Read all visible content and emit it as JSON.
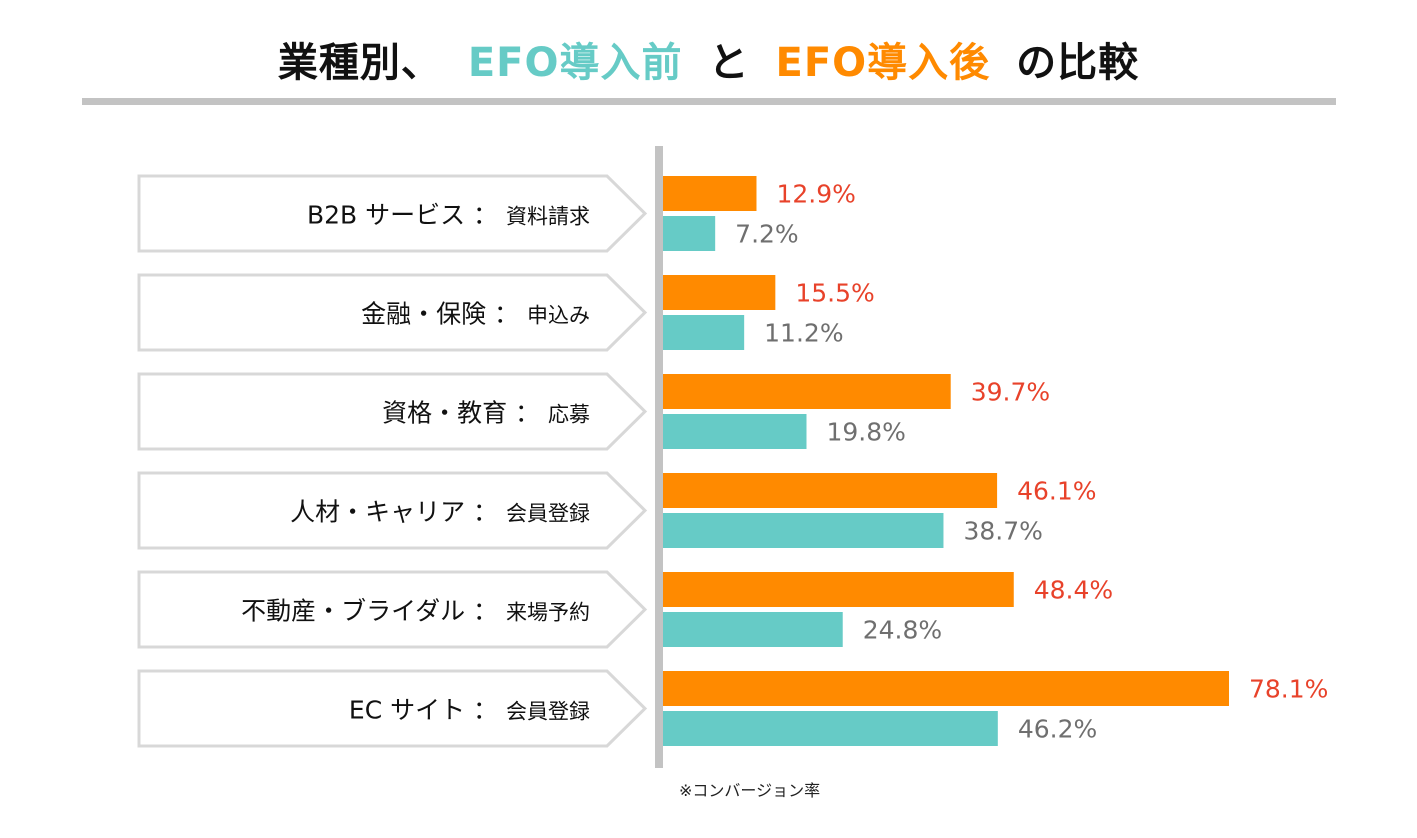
{
  "title": {
    "prefix": "業種別、",
    "before_label": "EFO導入前",
    "connector": "と",
    "after_label": "EFO導入後",
    "suffix": "の比較"
  },
  "footnote": "※コンバージョン率",
  "colors": {
    "after_bar": "#ff8a00",
    "before_bar": "#66cbc6",
    "after_value_text": "#e8422a",
    "before_value_text": "#6f6f6f",
    "axis": "#c3c3c3",
    "label_border": "#d8d8d8"
  },
  "chart_data": {
    "type": "bar",
    "orientation": "horizontal",
    "unit": "%",
    "xlim": [
      0,
      78.1
    ],
    "categories": [
      {
        "name": "B2B サービス",
        "action": "資料請求"
      },
      {
        "name": "金融・保険",
        "action": "申込み"
      },
      {
        "name": "資格・教育",
        "action": "応募"
      },
      {
        "name": "人材・キャリア",
        "action": "会員登録"
      },
      {
        "name": "不動産・ブライダル",
        "action": "来場予約"
      },
      {
        "name": "EC サイト",
        "action": "会員登録"
      }
    ],
    "series": [
      {
        "name": "EFO導入後",
        "values": [
          12.9,
          15.5,
          39.7,
          46.1,
          48.4,
          78.1
        ],
        "labels": [
          "12.9%",
          "15.5%",
          "39.7%",
          "46.1%",
          "48.4%",
          "78.1%"
        ]
      },
      {
        "name": "EFO導入前",
        "values": [
          7.2,
          11.2,
          19.8,
          38.7,
          24.8,
          46.2
        ],
        "labels": [
          "7.2%",
          "11.2%",
          "19.8%",
          "38.7%",
          "24.8%",
          "46.2%"
        ]
      }
    ]
  }
}
